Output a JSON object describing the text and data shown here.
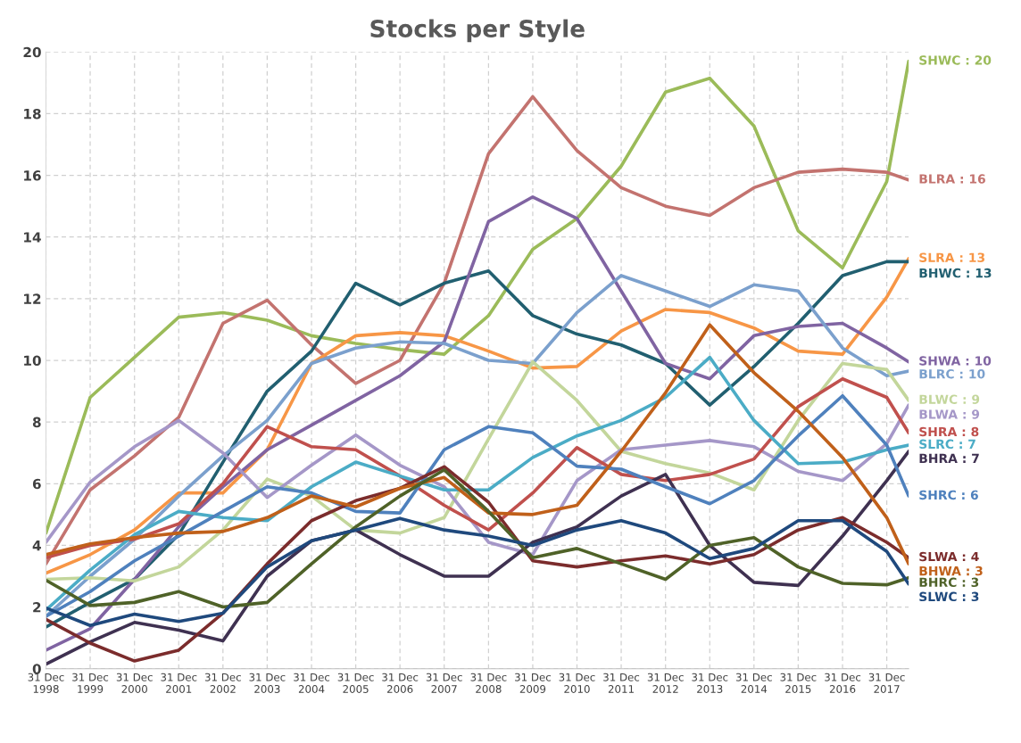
{
  "chart_data": {
    "type": "line",
    "title": "Stocks per Style",
    "x": [
      "1998-12-31",
      "1999-12-31",
      "2000-12-31",
      "2001-12-31",
      "2002-12-31",
      "2003-12-31",
      "2004-12-31",
      "2005-12-31",
      "2006-12-31",
      "2007-12-31",
      "2008-12-31",
      "2009-12-31",
      "2010-12-31",
      "2011-12-31",
      "2012-12-31",
      "2013-12-31",
      "2014-12-31",
      "2015-12-31",
      "2016-12-31",
      "2017-12-31",
      "2018-06-30"
    ],
    "xlim": [
      "1998-12-31",
      "2018-06-30"
    ],
    "xticks": [
      {
        "value": "1998-12-31",
        "label": "31 Dec\n1998"
      },
      {
        "value": "1999-12-31",
        "label": "31 Dec\n1999"
      },
      {
        "value": "2000-12-31",
        "label": "31 Dec\n2000"
      },
      {
        "value": "2001-12-31",
        "label": "31 Dec\n2001"
      },
      {
        "value": "2002-12-31",
        "label": "31 Dec\n2002"
      },
      {
        "value": "2003-12-31",
        "label": "31 Dec\n2003"
      },
      {
        "value": "2004-12-31",
        "label": "31 Dec\n2004"
      },
      {
        "value": "2005-12-31",
        "label": "31 Dec\n2005"
      },
      {
        "value": "2006-12-31",
        "label": "31 Dec\n2006"
      },
      {
        "value": "2007-12-31",
        "label": "31 Dec\n2007"
      },
      {
        "value": "2008-12-31",
        "label": "31 Dec\n2008"
      },
      {
        "value": "2009-12-31",
        "label": "31 Dec\n2009"
      },
      {
        "value": "2010-12-31",
        "label": "31 Dec\n2010"
      },
      {
        "value": "2011-12-31",
        "label": "31 Dec\n2011"
      },
      {
        "value": "2012-12-31",
        "label": "31 Dec\n2012"
      },
      {
        "value": "2013-12-31",
        "label": "31 Dec\n2013"
      },
      {
        "value": "2014-12-31",
        "label": "31 Dec\n2014"
      },
      {
        "value": "2015-12-31",
        "label": "31 Dec\n2015"
      },
      {
        "value": "2016-12-31",
        "label": "31 Dec\n2016"
      },
      {
        "value": "2017-12-31",
        "label": "31 Dec\n2017"
      }
    ],
    "ylim": [
      0,
      20
    ],
    "yticks": [
      0,
      2,
      4,
      6,
      8,
      10,
      12,
      14,
      16,
      18,
      20
    ],
    "grid": true,
    "legend": false,
    "marker": "none",
    "line_style": "solid",
    "series": [
      {
        "color": "#9bbb59",
        "values": [
          4.4,
          8.8,
          10.1,
          11.4,
          11.55,
          11.3,
          10.8,
          10.55,
          10.35,
          10.2,
          11.45,
          13.6,
          14.6,
          16.3,
          18.7,
          19.15,
          17.6,
          14.2,
          13.0,
          15.8,
          19.7
        ]
      },
      {
        "color": "#c3736f",
        "values": [
          3.4,
          5.8,
          6.9,
          8.15,
          11.2,
          11.95,
          10.5,
          9.25,
          10.0,
          12.5,
          16.7,
          18.55,
          16.8,
          15.6,
          15.0,
          14.7,
          15.6,
          16.1,
          16.2,
          16.1,
          15.85
        ]
      },
      {
        "color": "#f79646",
        "values": [
          3.1,
          3.7,
          4.5,
          5.7,
          5.7,
          7.1,
          9.9,
          10.8,
          10.9,
          10.8,
          10.3,
          9.75,
          9.8,
          10.95,
          11.65,
          11.55,
          11.05,
          10.3,
          10.2,
          12.05,
          13.3
        ]
      },
      {
        "color": "#215f70",
        "values": [
          1.35,
          2.15,
          2.9,
          4.35,
          6.7,
          9.0,
          10.3,
          12.5,
          11.8,
          12.5,
          12.9,
          11.45,
          10.85,
          10.5,
          9.9,
          8.55,
          9.8,
          11.2,
          12.75,
          13.2,
          13.2
        ]
      },
      {
        "color": "#8064a2",
        "values": [
          0.6,
          1.3,
          2.9,
          4.6,
          5.9,
          7.1,
          7.9,
          8.7,
          9.5,
          10.6,
          14.5,
          15.3,
          14.6,
          12.25,
          9.9,
          9.4,
          10.8,
          11.1,
          11.2,
          10.4,
          9.95
        ]
      },
      {
        "color": "#7ba0cd",
        "values": [
          1.7,
          3.0,
          4.2,
          5.6,
          6.9,
          8.05,
          9.9,
          10.4,
          10.6,
          10.55,
          10.0,
          9.9,
          11.55,
          12.75,
          12.25,
          11.75,
          12.45,
          12.25,
          10.4,
          9.5,
          9.65
        ]
      },
      {
        "color": "#c3d69b",
        "values": [
          2.9,
          2.95,
          2.85,
          3.3,
          4.5,
          6.15,
          5.6,
          4.5,
          4.4,
          4.9,
          7.45,
          9.95,
          8.7,
          7.05,
          6.65,
          6.35,
          5.8,
          8.05,
          9.9,
          9.7,
          8.7
        ]
      },
      {
        "color": "#a597c8",
        "values": [
          4.1,
          6.05,
          7.2,
          8.05,
          7.0,
          5.55,
          6.6,
          7.58,
          6.6,
          5.9,
          4.1,
          3.7,
          6.1,
          7.1,
          7.25,
          7.4,
          7.2,
          6.4,
          6.1,
          7.3,
          8.55
        ]
      },
      {
        "color": "#c0504d",
        "values": [
          3.6,
          4.0,
          4.2,
          4.7,
          6.0,
          7.85,
          7.2,
          7.1,
          6.25,
          5.3,
          4.5,
          5.7,
          7.17,
          6.3,
          6.1,
          6.3,
          6.8,
          8.5,
          9.4,
          8.8,
          7.65
        ]
      },
      {
        "color": "#4bacc6",
        "values": [
          1.9,
          3.2,
          4.35,
          5.1,
          4.9,
          4.8,
          5.9,
          6.7,
          6.25,
          5.8,
          5.8,
          6.85,
          7.55,
          8.05,
          8.8,
          10.1,
          8.05,
          6.65,
          6.7,
          7.1,
          7.25
        ]
      },
      {
        "color": "#3f3151",
        "values": [
          0.15,
          0.87,
          1.5,
          1.25,
          0.9,
          3.0,
          4.15,
          4.5,
          3.7,
          3.0,
          3.0,
          4.1,
          4.6,
          5.6,
          6.3,
          4.0,
          2.8,
          2.7,
          4.3,
          6.1,
          7.05
        ]
      },
      {
        "color": "#4f81bd",
        "values": [
          1.7,
          2.5,
          3.5,
          4.3,
          5.1,
          5.9,
          5.7,
          5.1,
          5.05,
          7.1,
          7.85,
          7.65,
          6.57,
          6.47,
          5.9,
          5.35,
          6.1,
          7.55,
          8.85,
          7.25,
          5.6
        ]
      },
      {
        "color": "#7b2c2c",
        "values": [
          1.6,
          0.83,
          0.25,
          0.6,
          1.8,
          3.4,
          4.8,
          5.45,
          5.85,
          6.55,
          5.4,
          3.5,
          3.3,
          3.5,
          3.66,
          3.4,
          3.7,
          4.5,
          4.9,
          4.1,
          3.6
        ]
      },
      {
        "color": "#c0601a",
        "values": [
          3.7,
          4.05,
          4.25,
          4.4,
          4.45,
          4.9,
          5.6,
          5.25,
          5.85,
          6.2,
          5.05,
          5.0,
          5.3,
          7.05,
          8.95,
          11.15,
          9.6,
          8.35,
          6.85,
          4.9,
          3.4
        ]
      },
      {
        "color": "#4f6228",
        "values": [
          2.87,
          2.05,
          2.15,
          2.5,
          2.0,
          2.15,
          3.4,
          4.6,
          5.6,
          6.45,
          5.1,
          3.6,
          3.9,
          3.4,
          2.9,
          4.0,
          4.25,
          3.3,
          2.77,
          2.72,
          2.95
        ]
      },
      {
        "color": "#1f497d",
        "values": [
          1.97,
          1.4,
          1.77,
          1.53,
          1.8,
          3.3,
          4.15,
          4.5,
          4.87,
          4.5,
          4.3,
          4.0,
          4.5,
          4.8,
          4.4,
          3.57,
          3.9,
          4.8,
          4.8,
          3.8,
          2.75
        ]
      }
    ],
    "annotations": [
      {
        "text": "SHWC : 20",
        "x": "2018-06-30",
        "y": 19.7
      },
      {
        "text": "BLRA : 16",
        "x": "2018-06-30",
        "y": 15.85
      },
      {
        "text": "SLRA : 13",
        "x": "2018-06-30",
        "y": 13.3
      },
      {
        "text": "BHWC : 13",
        "x": "2018-06-30",
        "y": 13.2
      },
      {
        "text": "SHWA : 10",
        "x": "2018-06-30",
        "y": 9.95
      },
      {
        "text": "BLRC : 10",
        "x": "2018-06-30",
        "y": 9.65
      },
      {
        "text": "BLWC : 9",
        "x": "2018-06-30",
        "y": 8.7
      },
      {
        "text": "BLWA : 9",
        "x": "2018-06-30",
        "y": 8.55
      },
      {
        "text": "SHRA : 8",
        "x": "2018-06-30",
        "y": 7.65
      },
      {
        "text": "SLRC : 7",
        "x": "2018-06-30",
        "y": 7.25
      },
      {
        "text": "BHRA : 7",
        "x": "2018-06-30",
        "y": 7.05
      },
      {
        "text": "SHRC : 6",
        "x": "2018-06-30",
        "y": 5.6
      },
      {
        "text": "SLWA : 4",
        "x": "2018-06-30",
        "y": 3.6
      },
      {
        "text": "BHWA : 3",
        "x": "2018-06-30",
        "y": 3.4
      },
      {
        "text": "BHRC : 3",
        "x": "2018-06-30",
        "y": 2.95
      },
      {
        "text": "SLWC : 3",
        "x": "2018-06-30",
        "y": 2.75
      }
    ]
  }
}
